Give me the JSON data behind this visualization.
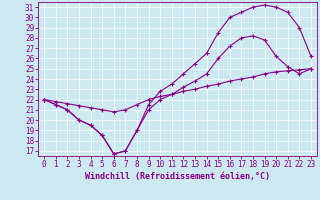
{
  "xlabel": "Windchill (Refroidissement éolien,°C)",
  "bg_color": "#cce8f0",
  "line_color": "#880088",
  "grid_color": "#ffffff",
  "axes_color": "#880088",
  "xlim": [
    -0.5,
    23.5
  ],
  "ylim": [
    16.5,
    31.5
  ],
  "xticks": [
    0,
    1,
    2,
    3,
    4,
    5,
    6,
    7,
    8,
    9,
    10,
    11,
    12,
    13,
    14,
    15,
    16,
    17,
    18,
    19,
    20,
    21,
    22,
    23
  ],
  "yticks": [
    17,
    18,
    19,
    20,
    21,
    22,
    23,
    24,
    25,
    26,
    27,
    28,
    29,
    30,
    31
  ],
  "line1_x": [
    0,
    1,
    2,
    3,
    4,
    5,
    6,
    7,
    8,
    9,
    10,
    11,
    12,
    13,
    14,
    15,
    16,
    17,
    18,
    19,
    20,
    21,
    22,
    23
  ],
  "line1_y": [
    22.0,
    21.5,
    21.0,
    20.0,
    19.5,
    18.5,
    16.7,
    17.0,
    19.0,
    21.0,
    22.0,
    22.5,
    23.2,
    23.8,
    24.5,
    26.0,
    27.2,
    28.0,
    28.2,
    27.8,
    26.2,
    25.2,
    24.5,
    25.0
  ],
  "line2_x": [
    0,
    1,
    2,
    3,
    4,
    5,
    6,
    7,
    8,
    9,
    10,
    11,
    12,
    13,
    14,
    15,
    16,
    17,
    18,
    19,
    20,
    21,
    22,
    23
  ],
  "line2_y": [
    22.0,
    21.5,
    21.0,
    20.0,
    19.5,
    18.5,
    16.7,
    17.0,
    19.0,
    21.5,
    22.8,
    23.5,
    24.5,
    25.5,
    26.5,
    28.5,
    30.0,
    30.5,
    31.0,
    31.2,
    31.0,
    30.5,
    29.0,
    26.2
  ],
  "line3_x": [
    0,
    1,
    2,
    3,
    4,
    5,
    6,
    7,
    8,
    9,
    10,
    11,
    12,
    13,
    14,
    15,
    16,
    17,
    18,
    19,
    20,
    21,
    22,
    23
  ],
  "line3_y": [
    22.0,
    21.8,
    21.6,
    21.4,
    21.2,
    21.0,
    20.8,
    21.0,
    21.5,
    22.0,
    22.3,
    22.5,
    22.8,
    23.0,
    23.3,
    23.5,
    23.8,
    24.0,
    24.2,
    24.5,
    24.7,
    24.8,
    24.9,
    25.0
  ],
  "xlabel_fontsize": 6,
  "tick_fontsize": 5.5
}
